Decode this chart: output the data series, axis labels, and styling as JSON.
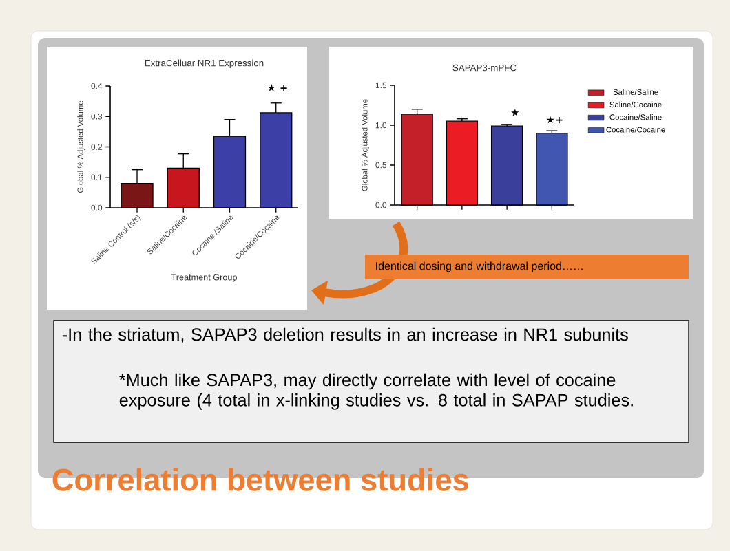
{
  "chart_data": [
    {
      "type": "bar",
      "title": "ExtraCelluar NR1 Expression",
      "xlabel": "Treatment Group",
      "ylabel": "Global % Adjusted Volume",
      "categories": [
        "Saline Control (s/s)",
        "Saline/Cocaine",
        "Cocaine /Saline",
        "Cocaine/Cocaine"
      ],
      "values": [
        0.08,
        0.13,
        0.235,
        0.312
      ],
      "errors": [
        0.045,
        0.047,
        0.055,
        0.032
      ],
      "colors": [
        "#7a1616",
        "#c8161e",
        "#3b3fa6",
        "#3b3fa6"
      ],
      "ylim": [
        0,
        0.4
      ],
      "yticks": [
        {
          "value": 0,
          "label": "0.0"
        },
        {
          "value": 0.1,
          "label": "0.1"
        },
        {
          "value": 0.2,
          "label": "0.2"
        },
        {
          "value": 0.3,
          "label": "0.3"
        },
        {
          "value": 0.4,
          "label": "0.4"
        }
      ],
      "annotations": [
        "★ +"
      ],
      "grid": false,
      "legend": false
    },
    {
      "type": "bar",
      "title": "SAPAP3-mPFC",
      "ylabel": "Global % Adjusted Volume",
      "categories": [
        null,
        null,
        null,
        null
      ],
      "series": [
        {
          "name": "Saline/Saline",
          "color": "#c4202a",
          "values": [
            1.14,
            null,
            null,
            null
          ],
          "errors": [
            0.06,
            null,
            null,
            null
          ]
        },
        {
          "name": "Saline/Cocaine",
          "color": "#ec1c24",
          "values": [
            null,
            1.05,
            null,
            null
          ],
          "errors": [
            null,
            0.03,
            null,
            null
          ]
        },
        {
          "name": "Cocaine/Saline",
          "color": "#3a3f9c",
          "values": [
            null,
            null,
            0.99,
            null
          ],
          "errors": [
            null,
            null,
            0.02,
            null
          ]
        },
        {
          "name": "Cocaine/Cocaine",
          "color": "#4056b0",
          "values": [
            null,
            null,
            null,
            0.9
          ],
          "errors": [
            null,
            null,
            null,
            0.03
          ]
        }
      ],
      "ylim": [
        0,
        1.5
      ],
      "yticks": [
        {
          "value": 0,
          "label": "0.0"
        },
        {
          "value": 0.5,
          "label": "0.5"
        },
        {
          "value": 1.0,
          "label": "1.0"
        },
        {
          "value": 1.5,
          "label": "1.5"
        }
      ],
      "annotations": [
        "★",
        "★+"
      ],
      "tick_labels": "y",
      "grid": false,
      "legend": "right"
    },
    {
      "type": "other",
      "title": "Correlation between studies",
      "annotations": [
        "Identical dosing and withdrawal period……",
        "-In the striatum, SAPAP3 deletion results in an increase in NR1 subunits",
        "*Much like SAPAP3, may directly correlate with level of cocaine exposure (4 total in x-linking studies vs. 8 total in SAPAP studies."
      ]
    }
  ]
}
